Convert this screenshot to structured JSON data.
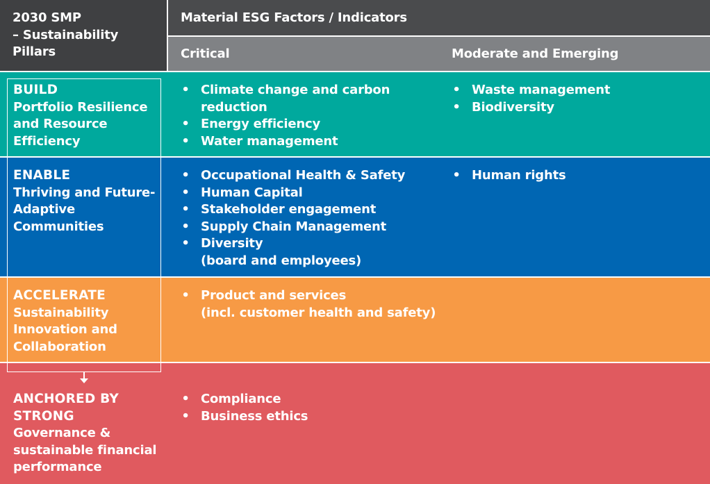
{
  "header": {
    "pillars_title": "2030 SMP\n– Sustainability\nPillars",
    "factors_title": "Material ESG Factors / Indicators",
    "critical_label": "Critical",
    "moderate_label": "Moderate and Emerging"
  },
  "colors": {
    "header_dark": "#3f4042",
    "header_mid": "#4a4b4d",
    "header_light": "#808285",
    "build": "#00a99d",
    "enable": "#0066b3",
    "accelerate": "#f79a45",
    "anchored": "#e05a5f"
  },
  "rows": [
    {
      "title": "BUILD",
      "desc": "Portfolio Resilience\nand Resource\nEfficiency",
      "critical": [
        "Climate change and carbon\nreduction",
        "Energy efficiency",
        "Water management"
      ],
      "moderate": [
        "Waste management",
        "Biodiversity"
      ]
    },
    {
      "title": "ENABLE",
      "desc": "Thriving and Future-\nAdaptive\nCommunities",
      "critical": [
        "Occupational Health & Safety",
        "Human Capital",
        "Stakeholder engagement",
        "Supply Chain Management",
        "Diversity\n(board and employees)"
      ],
      "moderate": [
        "Human rights"
      ]
    },
    {
      "title": "ACCELERATE",
      "desc": "Sustainability\nInnovation and\nCollaboration",
      "critical": [
        "Product and services\n(incl. customer health and safety)"
      ],
      "moderate": []
    },
    {
      "title": "ANCHORED BY\nSTRONG",
      "desc": "Governance &\nsustainable financial\nperformance",
      "critical": [
        "Compliance",
        "Business ethics"
      ],
      "moderate": []
    }
  ]
}
